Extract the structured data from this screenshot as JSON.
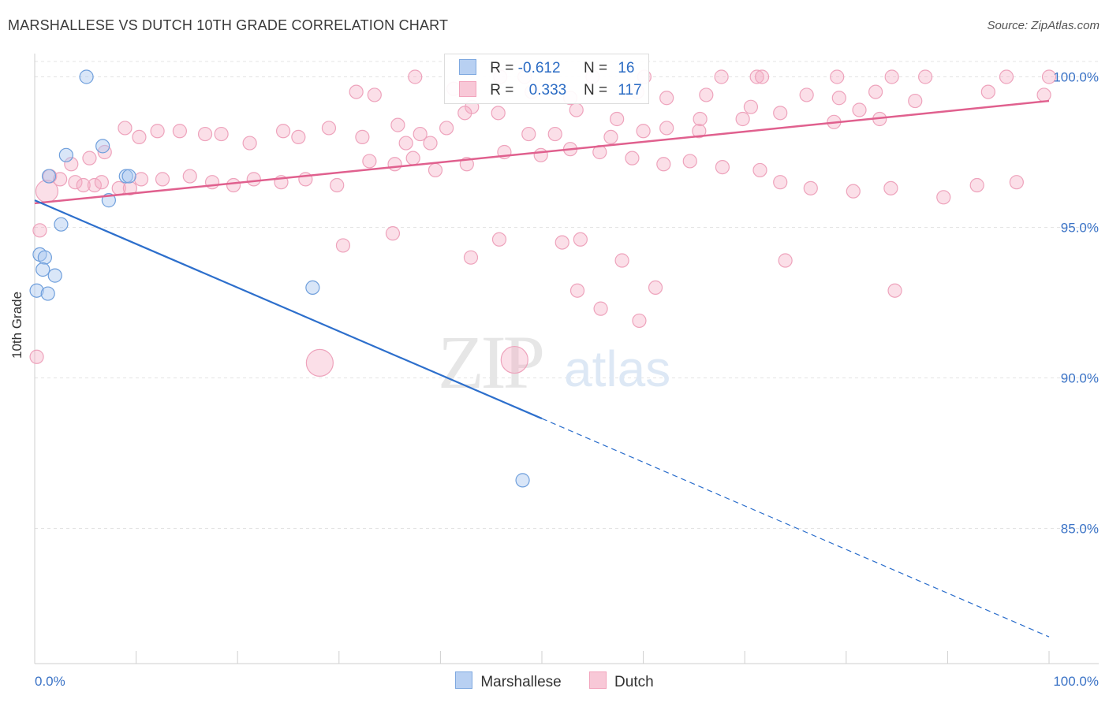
{
  "title": "MARSHALLESE VS DUTCH 10TH GRADE CORRELATION CHART",
  "source": "Source: ZipAtlas.com",
  "watermark": {
    "zip": "ZIP",
    "atlas": "atlas"
  },
  "legend": {
    "rows": [
      {
        "r_label": "R =",
        "r_value": "-0.612",
        "n_label": "N =",
        "n_value": "16"
      },
      {
        "r_label": "R =",
        "r_value": "0.333",
        "n_label": "N =",
        "n_value": "117"
      }
    ]
  },
  "chart_data": {
    "type": "scatter",
    "title": "MARSHALLESE VS DUTCH 10TH GRADE CORRELATION CHART",
    "xlabel": "",
    "ylabel": "10th Grade",
    "xlim": [
      0,
      100
    ],
    "ylim": [
      81,
      100.8
    ],
    "x_tick_labels": [
      "0.0%",
      "100.0%"
    ],
    "y_ticks": [
      85,
      90,
      95,
      100
    ],
    "y_tick_labels": [
      "85.0%",
      "90.0%",
      "95.0%",
      "100.0%"
    ],
    "grid": true,
    "legend_position": "bottom",
    "colors": {
      "Marshallese": "#7fa9e0",
      "Dutch": "#f2a4bd",
      "Marshallese_line": "#2d6fcc",
      "Dutch_line": "#e0608e"
    },
    "series": [
      {
        "name": "Marshallese",
        "r": -0.612,
        "n": 16,
        "trend": {
          "x0": 0,
          "y0": 95.9,
          "x1": 100,
          "y1": 81.4,
          "solid_until_x": 50
        },
        "points": [
          [
            5.1,
            100.0
          ],
          [
            6.7,
            97.7
          ],
          [
            3.1,
            97.4
          ],
          [
            1.4,
            96.7
          ],
          [
            9.0,
            96.7
          ],
          [
            7.3,
            95.9
          ],
          [
            2.6,
            95.1
          ],
          [
            0.5,
            94.1
          ],
          [
            1.0,
            94.0
          ],
          [
            0.8,
            93.6
          ],
          [
            2.0,
            93.4
          ],
          [
            0.2,
            92.9
          ],
          [
            1.3,
            92.8
          ],
          [
            27.4,
            93.0
          ],
          [
            48.1,
            86.6
          ],
          [
            9.3,
            96.7
          ]
        ]
      },
      {
        "name": "Dutch",
        "r": 0.333,
        "n": 117,
        "trend": {
          "x0": 0,
          "y0": 95.8,
          "x1": 100,
          "y1": 99.2
        },
        "points": [
          [
            37.5,
            100.0
          ],
          [
            45.9,
            100.0
          ],
          [
            48.3,
            100.0
          ],
          [
            55.0,
            100.0
          ],
          [
            60.1,
            100.0
          ],
          [
            67.7,
            100.0
          ],
          [
            71.2,
            100.0
          ],
          [
            79.1,
            100.0
          ],
          [
            87.8,
            100.0
          ],
          [
            71.7,
            100.0
          ],
          [
            84.5,
            100.0
          ],
          [
            95.8,
            100.0
          ],
          [
            100.0,
            100.0
          ],
          [
            31.7,
            99.5
          ],
          [
            33.5,
            99.4
          ],
          [
            41.3,
            99.6
          ],
          [
            49.0,
            99.5
          ],
          [
            52.8,
            99.3
          ],
          [
            59.4,
            99.5
          ],
          [
            62.3,
            99.3
          ],
          [
            66.2,
            99.4
          ],
          [
            70.6,
            99.0
          ],
          [
            76.1,
            99.4
          ],
          [
            79.3,
            99.3
          ],
          [
            82.9,
            99.5
          ],
          [
            86.8,
            99.2
          ],
          [
            94.0,
            99.5
          ],
          [
            99.5,
            99.4
          ],
          [
            43.1,
            99.0
          ],
          [
            42.4,
            98.8
          ],
          [
            45.7,
            98.8
          ],
          [
            53.4,
            98.9
          ],
          [
            57.4,
            98.6
          ],
          [
            65.6,
            98.6
          ],
          [
            73.5,
            98.8
          ],
          [
            69.8,
            98.6
          ],
          [
            78.8,
            98.5
          ],
          [
            81.3,
            98.9
          ],
          [
            83.3,
            98.6
          ],
          [
            62.3,
            98.3
          ],
          [
            65.5,
            98.2
          ],
          [
            60.0,
            98.2
          ],
          [
            56.8,
            98.0
          ],
          [
            51.3,
            98.1
          ],
          [
            48.7,
            98.1
          ],
          [
            40.6,
            98.3
          ],
          [
            39.0,
            97.8
          ],
          [
            38.0,
            98.1
          ],
          [
            36.6,
            97.8
          ],
          [
            35.8,
            98.4
          ],
          [
            32.3,
            98.0
          ],
          [
            29.0,
            98.3
          ],
          [
            26.0,
            98.0
          ],
          [
            24.5,
            98.2
          ],
          [
            21.2,
            97.8
          ],
          [
            18.4,
            98.1
          ],
          [
            16.8,
            98.1
          ],
          [
            14.3,
            98.2
          ],
          [
            12.1,
            98.2
          ],
          [
            10.3,
            98.0
          ],
          [
            8.9,
            98.3
          ],
          [
            6.9,
            97.5
          ],
          [
            5.4,
            97.3
          ],
          [
            3.6,
            97.1
          ],
          [
            1.5,
            96.7
          ],
          [
            2.5,
            96.6
          ],
          [
            4.0,
            96.5
          ],
          [
            4.8,
            96.4
          ],
          [
            5.9,
            96.4
          ],
          [
            6.6,
            96.5
          ],
          [
            8.3,
            96.3
          ],
          [
            9.4,
            96.3
          ],
          [
            10.5,
            96.6
          ],
          [
            12.6,
            96.6
          ],
          [
            15.3,
            96.7
          ],
          [
            17.5,
            96.5
          ],
          [
            19.6,
            96.4
          ],
          [
            21.6,
            96.6
          ],
          [
            24.3,
            96.5
          ],
          [
            26.7,
            96.6
          ],
          [
            29.8,
            96.4
          ],
          [
            33.0,
            97.2
          ],
          [
            35.5,
            97.1
          ],
          [
            37.3,
            97.3
          ],
          [
            39.5,
            96.9
          ],
          [
            42.6,
            97.1
          ],
          [
            46.3,
            97.5
          ],
          [
            49.9,
            97.4
          ],
          [
            52.8,
            97.6
          ],
          [
            55.7,
            97.5
          ],
          [
            58.9,
            97.3
          ],
          [
            62.0,
            97.1
          ],
          [
            64.6,
            97.2
          ],
          [
            67.8,
            97.0
          ],
          [
            71.5,
            96.9
          ],
          [
            73.5,
            96.5
          ],
          [
            76.5,
            96.3
          ],
          [
            80.7,
            96.2
          ],
          [
            84.4,
            96.3
          ],
          [
            89.6,
            96.0
          ],
          [
            92.9,
            96.4
          ],
          [
            96.8,
            96.5
          ],
          [
            0.5,
            94.9
          ],
          [
            0.2,
            90.7
          ],
          [
            28.1,
            90.5
          ],
          [
            47.3,
            90.6
          ],
          [
            30.4,
            94.4
          ],
          [
            43.0,
            94.0
          ],
          [
            52.0,
            94.5
          ],
          [
            57.9,
            93.9
          ],
          [
            53.5,
            92.9
          ],
          [
            55.8,
            92.3
          ],
          [
            59.6,
            91.9
          ],
          [
            74.0,
            93.9
          ],
          [
            61.2,
            93.0
          ],
          [
            84.8,
            92.9
          ],
          [
            45.8,
            94.6
          ],
          [
            53.8,
            94.6
          ],
          [
            35.3,
            94.8
          ]
        ]
      }
    ]
  },
  "bottom_legend": {
    "items": [
      "Marshallese",
      "Dutch"
    ]
  }
}
